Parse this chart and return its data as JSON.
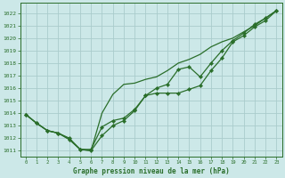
{
  "title": "Graphe pression niveau de la mer (hPa)",
  "background_color": "#cce8e8",
  "grid_color": "#aacccc",
  "line_color": "#2a6e2a",
  "xlim": [
    -0.5,
    23.5
  ],
  "ylim": [
    1010.5,
    1022.8
  ],
  "yticks": [
    1011,
    1012,
    1013,
    1014,
    1015,
    1016,
    1017,
    1018,
    1019,
    1020,
    1021,
    1022
  ],
  "xticks": [
    0,
    1,
    2,
    3,
    4,
    5,
    6,
    7,
    8,
    9,
    10,
    11,
    12,
    13,
    14,
    15,
    16,
    17,
    18,
    19,
    20,
    21,
    22,
    23
  ],
  "series1_x": [
    0,
    1,
    2,
    3,
    4,
    5,
    6,
    7,
    8,
    9,
    10,
    11,
    12,
    13,
    14,
    15,
    16,
    17,
    18,
    19,
    20,
    21,
    22,
    23
  ],
  "series1_y": [
    1013.9,
    1013.2,
    1012.6,
    1012.4,
    1011.9,
    1011.1,
    1011.1,
    1012.9,
    1013.4,
    1013.6,
    1014.3,
    1015.4,
    1015.6,
    1015.6,
    1015.6,
    1015.9,
    1016.2,
    1017.4,
    1018.4,
    1019.7,
    1020.2,
    1020.9,
    1021.4,
    1022.2
  ],
  "series2_x": [
    0,
    1,
    2,
    3,
    4,
    5,
    6,
    7,
    8,
    9,
    10,
    11,
    12,
    13,
    14,
    15,
    16,
    17,
    18,
    19,
    20,
    21,
    22,
    23
  ],
  "series2_y": [
    1013.9,
    1013.2,
    1012.6,
    1012.4,
    1011.9,
    1011.1,
    1011.0,
    1014.0,
    1015.5,
    1016.3,
    1016.4,
    1016.7,
    1016.9,
    1017.4,
    1018.0,
    1018.3,
    1018.7,
    1019.3,
    1019.7,
    1020.0,
    1020.5,
    1021.0,
    1021.6,
    1022.2
  ],
  "series3_x": [
    0,
    1,
    2,
    3,
    4,
    5,
    6,
    7,
    8,
    9,
    10,
    11,
    12,
    13,
    14,
    15,
    16,
    17,
    18,
    19,
    20,
    21,
    22,
    23
  ],
  "series3_y": [
    1013.9,
    1013.2,
    1012.6,
    1012.4,
    1012.0,
    1011.1,
    1011.0,
    1012.2,
    1013.0,
    1013.4,
    1014.2,
    1015.4,
    1016.0,
    1016.3,
    1017.5,
    1017.7,
    1016.9,
    1018.0,
    1019.0,
    1019.8,
    1020.4,
    1021.1,
    1021.6,
    1022.2
  ]
}
